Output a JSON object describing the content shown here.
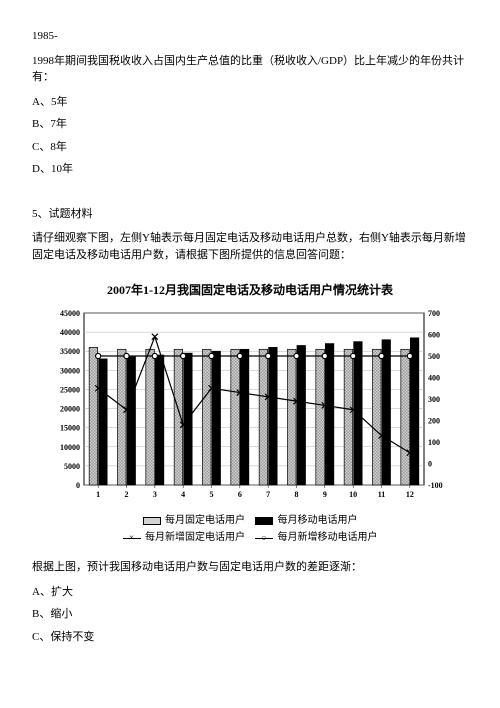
{
  "q4": {
    "stem_line1": "1985-",
    "stem_line2": "1998年期间我国税收收入占国内生产总值的比重（税收收入/GDP）比上年减少的年份共计有：",
    "options": {
      "A": "A、5年",
      "B": "B、7年",
      "C": "C、8年",
      "D": "D、10年"
    }
  },
  "q5": {
    "heading": "5、试题材料",
    "instruction": "请仔细观察下图，左侧Y轴表示每月固定电话及移动电话用户总数，右侧Y轴表示每月新增固定电话及移动电话用户数，请根据下图所提供的信息回答问题：",
    "chart": {
      "title": "2007年1-12月我国固定电话及移动电话用户情况统计表",
      "x_labels": [
        "1",
        "2",
        "3",
        "4",
        "5",
        "6",
        "7",
        "8",
        "9",
        "10",
        "11",
        "12"
      ],
      "left_y": {
        "min": 0,
        "max": 45000,
        "step": 5000,
        "ticks": [
          0,
          5000,
          10000,
          15000,
          20000,
          25000,
          30000,
          35000,
          40000,
          45000
        ]
      },
      "right_y": {
        "min": -100,
        "max": 700,
        "step": 100,
        "ticks": [
          -100,
          0,
          100,
          200,
          300,
          400,
          500,
          600,
          700
        ]
      },
      "series": [
        {
          "name": "每月固定电话用户",
          "name_key": "fixed-total",
          "type": "bar",
          "fill": "url(#p-fixed)",
          "stroke": "#000000",
          "values": [
            36000,
            35500,
            35500,
            35500,
            35500,
            35500,
            35500,
            35500,
            35500,
            35500,
            35500,
            35500
          ]
        },
        {
          "name": "每月移动电话用户",
          "name_key": "mobile-total",
          "type": "bar",
          "fill": "#000000",
          "stroke": "#000000",
          "values": [
            33000,
            33500,
            34000,
            34500,
            35000,
            35500,
            36000,
            36500,
            37000,
            37500,
            38000,
            38500
          ]
        },
        {
          "name": "每月新增固定电话用户",
          "name_key": "fixed-new",
          "type": "line",
          "marker": "x",
          "stroke": "#000000",
          "values": [
            350,
            250,
            590,
            180,
            350,
            330,
            310,
            290,
            270,
            250,
            130,
            50
          ]
        },
        {
          "name": "每月新增移动电话用户",
          "name_key": "mobile-new",
          "type": "line",
          "marker": "o",
          "stroke": "#000000",
          "values": [
            500,
            500,
            500,
            500,
            500,
            500,
            500,
            500,
            500,
            500,
            500,
            500
          ]
        }
      ],
      "colors": {
        "background": "#ffffff",
        "grid": "#b3b3b3",
        "axis": "#000000",
        "text": "#000000"
      },
      "legend_labels": {
        "fixed_total": "每月固定电话用户",
        "mobile_total": "每月移动电话用户",
        "fixed_new": "每月新增固定电话用户",
        "mobile_new": "每月新增移动电话用户"
      }
    },
    "post_text": "根据上图，预计我国移动电话用户数与固定电话用户数的差距逐渐：",
    "options": {
      "A": "A、扩大",
      "B": "B、缩小",
      "C": "C、保持不变"
    }
  }
}
